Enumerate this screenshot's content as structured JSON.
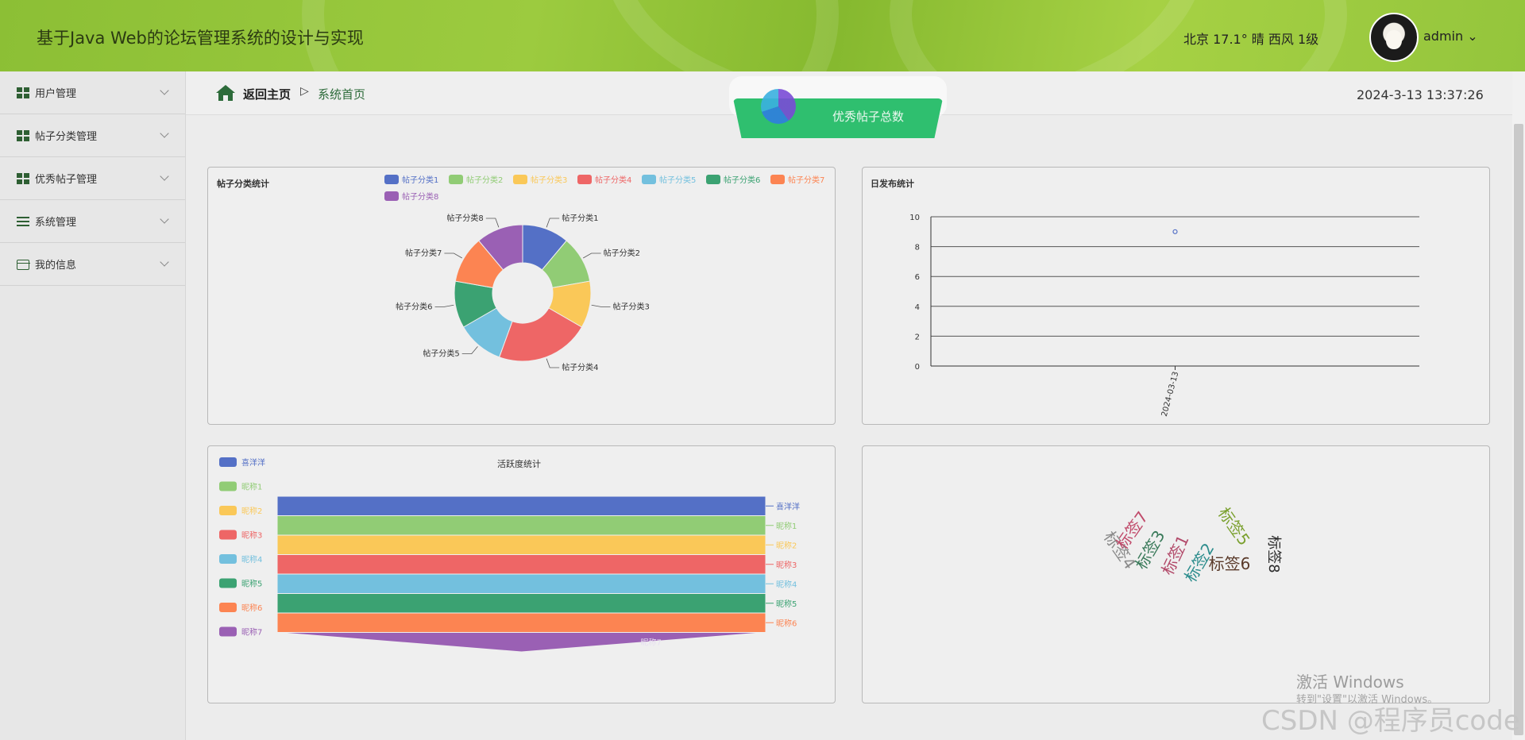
{
  "app": {
    "title": "基于Java Web的论坛管理系统的设计与实现"
  },
  "header": {
    "weather": "北京  17.1°  晴  西风  1级",
    "user": "admin ⌄"
  },
  "sidebar": {
    "items": [
      {
        "label": "用户管理",
        "icon": "grid-icon"
      },
      {
        "label": "帖子分类管理",
        "icon": "grid-icon"
      },
      {
        "label": "优秀帖子管理",
        "icon": "grid-icon"
      },
      {
        "label": "系统管理",
        "icon": "list-icon"
      },
      {
        "label": "我的信息",
        "icon": "card-icon"
      }
    ]
  },
  "breadcrumb": {
    "home": "返回主页",
    "separator": "▷",
    "current": "系统首页"
  },
  "clock": "2024-3-13 13:37:26",
  "stat_pill": {
    "label": "优秀帖子总数"
  },
  "panels": {
    "category": {
      "title": "帖子分类统计"
    },
    "daily": {
      "title": "日发布统计"
    },
    "activity": {
      "title": "活跃度统计"
    }
  },
  "watermarks": {
    "windows": "激活 Windows",
    "windows_sub": "转到\"设置\"以激活 Windows。",
    "csdn": "CSDN @程序员code"
  },
  "colors": {
    "accent": "#8cbf35",
    "c1": "#5470c6",
    "c2": "#91cc75",
    "c3": "#fac858",
    "c4": "#ee6666",
    "c5": "#73c0de",
    "c6": "#3ba272",
    "c7": "#fc8452",
    "c8": "#9a60b4"
  },
  "chart_data": [
    {
      "type": "pie",
      "title": "帖子分类统计",
      "legend_position": "top",
      "categories": [
        "帖子分类1",
        "帖子分类2",
        "帖子分类3",
        "帖子分类4",
        "帖子分类5",
        "帖子分类6",
        "帖子分类7",
        "帖子分类8"
      ],
      "values": [
        1,
        1,
        1,
        2,
        1,
        1,
        1,
        1
      ]
    },
    {
      "type": "scatter",
      "title": "日发布统计",
      "x": [
        "2024-03-13"
      ],
      "y": [
        9
      ],
      "ylim": [
        0,
        10
      ],
      "yticks": [
        0,
        2,
        4,
        6,
        8,
        10
      ],
      "grid": true
    },
    {
      "type": "funnel",
      "title": "活跃度统计",
      "legend_position": "left",
      "categories": [
        "喜洋洋",
        "昵称1",
        "昵称2",
        "昵称3",
        "昵称4",
        "昵称5",
        "昵称6",
        "昵称7"
      ],
      "values": [
        1,
        1,
        1,
        1,
        1,
        1,
        1,
        0
      ]
    },
    {
      "type": "wordcloud",
      "words": [
        {
          "text": "标签1",
          "color": "#b24a6a"
        },
        {
          "text": "标签2",
          "color": "#2b8c8c"
        },
        {
          "text": "标签3",
          "color": "#3a7a5a"
        },
        {
          "text": "标签4",
          "color": "#8a8a8a"
        },
        {
          "text": "标签5",
          "color": "#7aa02e"
        },
        {
          "text": "标签6",
          "color": "#5a3a2a"
        },
        {
          "text": "标签7",
          "color": "#c04a6a"
        },
        {
          "text": "标签8",
          "color": "#2a2a2a"
        }
      ]
    }
  ]
}
